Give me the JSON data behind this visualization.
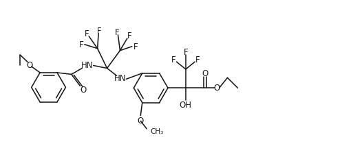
{
  "figsize": [
    4.97,
    2.29
  ],
  "dpi": 100,
  "bg": "#ffffff",
  "xlim": [
    0,
    10
  ],
  "ylim": [
    0,
    4.62
  ]
}
